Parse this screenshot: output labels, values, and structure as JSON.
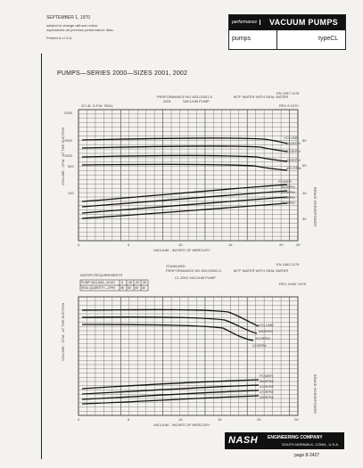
{
  "header": {
    "date": "SEPTEMBER 1, 1970",
    "notice_line1": "subject to change without notice;",
    "notice_line2": "supersedes all previous performance data.",
    "printed": "Printed in U.S.A.",
    "performance": "performance",
    "product": "VACUUM PUMPS",
    "category": "pumps",
    "type": "typeCL"
  },
  "document": {
    "title": "PUMPS—SERIES 2000—SIZES 2001, 2002"
  },
  "chart1": {
    "sheet_no": "EN 1957-1176",
    "perf_line": "PERFORMANCE NO 453-02001-0",
    "perf_line2": "2001",
    "seal_note": "60°F WATER WITH SEAL WATER",
    "subtitle": "VACUUM PUMP",
    "rev": "REV 8 1970",
    "ylabel_left": "VOLUME · CFM · AT THE SUCTION",
    "ylabel_right": "BRAKE HORSEPOWER",
    "xlabel": "VACUUM - INCHES OF MERCURY",
    "small_note": "20 LB. G.P.M. SEAL",
    "left_ticks": [
      "2000",
      "1500",
      "1000",
      "500",
      "100"
    ],
    "right_ticks": [
      "60",
      "50",
      "40",
      "30"
    ],
    "x_ticks": [
      "0",
      "5",
      "10",
      "15",
      "20",
      "25"
    ],
    "labels": [
      "VOLUME",
      "560RPM",
      "530RPM",
      "490RPM",
      "450 RPM",
      "POWER",
      "560RPM",
      "530RPM",
      "490RPM",
      "450RPM"
    ]
  },
  "chart2": {
    "sheet_no": "EN 1462-1176",
    "standard": "STANDARD",
    "perf_line": "PERFORMANCE NO 453-02002-0",
    "seal_note": "60°F WATER WITH SEAL WATER",
    "subtitle": "CL 2002 VACUUM PUMP",
    "rev": "REV JUNE 1976",
    "water_req": "WATER REQUIREMENTS",
    "table_row1": "PUMP VACUUM—IN HG",
    "table_row2": "SEAL QUANTITY—GPM",
    "table_row1_values": [
      "5",
      "15",
      "20",
      "25"
    ],
    "table_row2_values": [
      "45",
      "40",
      "40",
      "40"
    ],
    "ylabel_left": "VOLUME · CFM · AT THE SUCTION",
    "ylabel_right": "BRAKE HORSEPOWER",
    "xlabel": "VACUUM - INCHES OF MERCURY",
    "x_ticks": [
      "0",
      "5",
      "10",
      "15",
      "20",
      "25"
    ],
    "labels": [
      "VOLUME",
      "560RPM",
      "510RPM",
      "470RPM",
      "POWER",
      "560RPM",
      "510RPM",
      "470RPM",
      "450RPM"
    ]
  },
  "footer": {
    "brand": "NASH",
    "company": "ENGINEERING COMPANY",
    "address": "SOUTH NORWALK, CONN., U.S.A.",
    "page": "page 8-2427"
  }
}
